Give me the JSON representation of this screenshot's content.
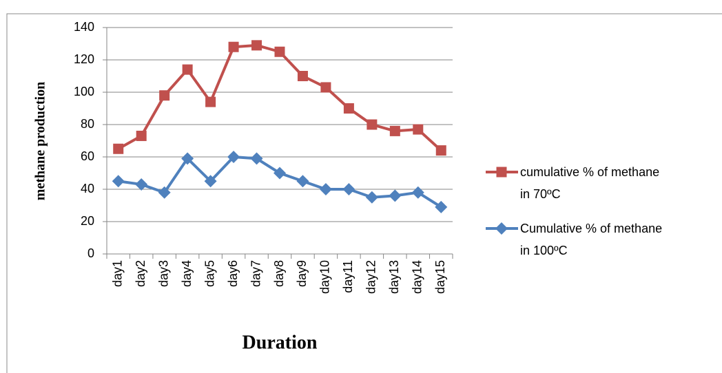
{
  "chart_data": {
    "type": "line",
    "y_axis_label": "methane production",
    "x_axis_label": "Duration",
    "categories": [
      "day1",
      "day2",
      "day3",
      "day4",
      "day5",
      "day6",
      "day7",
      "day8",
      "day9",
      "day10",
      "day11",
      "day12",
      "day13",
      "day14",
      "day15"
    ],
    "series": [
      {
        "name": "cumulative % of methane in 70ºC",
        "color": "#c0504d",
        "marker": "square",
        "values": [
          65,
          73,
          98,
          114,
          94,
          128,
          129,
          125,
          110,
          103,
          90,
          80,
          76,
          77,
          64
        ]
      },
      {
        "name": "Cumulative % of methane in 100ºC",
        "color": "#4f81bd",
        "marker": "diamond",
        "values": [
          45,
          43,
          38,
          59,
          45,
          60,
          59,
          50,
          45,
          40,
          40,
          35,
          36,
          38,
          29
        ]
      }
    ],
    "ylim": [
      0,
      140
    ],
    "yticks": [
      0,
      20,
      40,
      60,
      80,
      100,
      120,
      140
    ],
    "grid": true,
    "legend": "right"
  }
}
